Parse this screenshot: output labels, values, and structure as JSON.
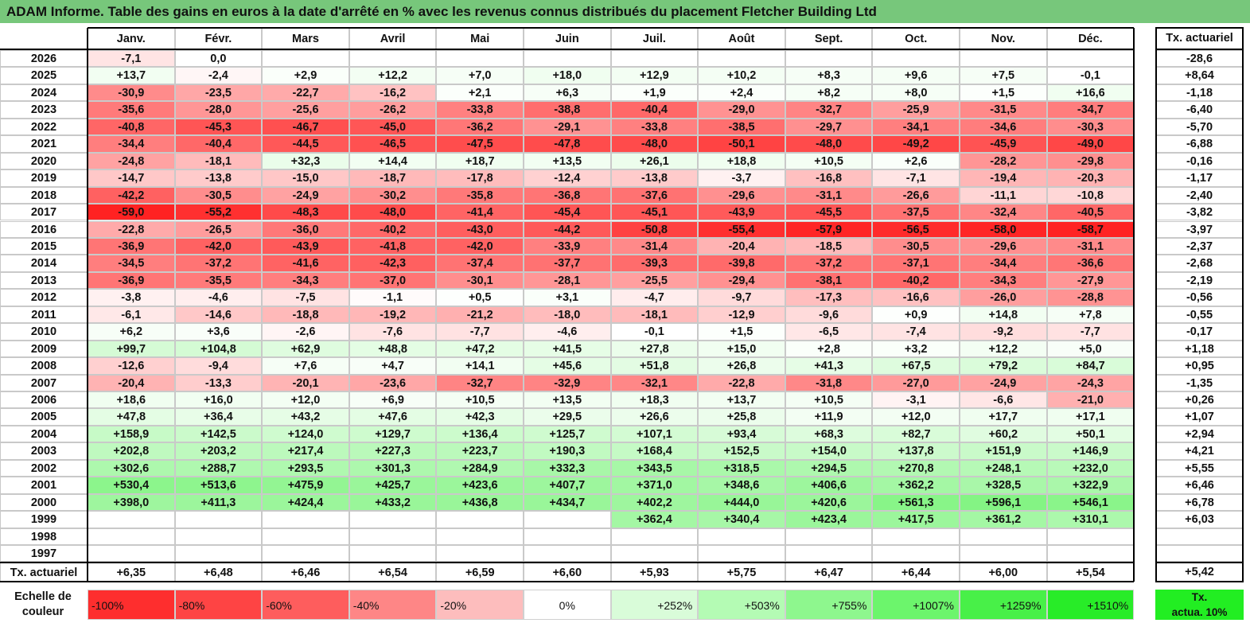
{
  "title": "ADAM Informe. Table des gains en euros à la date d'arrêté en % avec les revenus connus distribués du placement Fletcher Building Ltd",
  "chart_data": {
    "type": "table",
    "title": "ADAM Informe. Table des gains en euros à la date d'arrêté en % avec les revenus connus distribués du placement Fletcher Building Ltd",
    "columns": [
      "Janv.",
      "Févr.",
      "Mars",
      "Avril",
      "Mai",
      "Juin",
      "Juil.",
      "Août",
      "Sept.",
      "Oct.",
      "Nov.",
      "Déc."
    ],
    "rate_header": "Tx. actuariel",
    "rows": [
      {
        "year": "2026",
        "values": [
          "-7,1",
          "0,0",
          "",
          "",
          "",
          "",
          "",
          "",
          "",
          "",
          "",
          ""
        ],
        "rate": "-28,6"
      },
      {
        "year": "2025",
        "values": [
          "+13,7",
          "-2,4",
          "+2,9",
          "+12,2",
          "+7,0",
          "+18,0",
          "+12,9",
          "+10,2",
          "+8,3",
          "+9,6",
          "+7,5",
          "-0,1"
        ],
        "rate": "+8,64"
      },
      {
        "year": "2024",
        "values": [
          "-30,9",
          "-23,5",
          "-22,7",
          "-16,2",
          "+2,1",
          "+6,3",
          "+1,9",
          "+2,4",
          "+8,2",
          "+8,0",
          "+1,5",
          "+16,6"
        ],
        "rate": "-1,18"
      },
      {
        "year": "2023",
        "values": [
          "-35,6",
          "-28,0",
          "-25,6",
          "-26,2",
          "-33,8",
          "-38,8",
          "-40,4",
          "-29,0",
          "-32,7",
          "-25,9",
          "-31,5",
          "-34,7"
        ],
        "rate": "-6,40"
      },
      {
        "year": "2022",
        "values": [
          "-40,8",
          "-45,3",
          "-46,7",
          "-45,0",
          "-36,2",
          "-29,1",
          "-33,8",
          "-38,5",
          "-29,7",
          "-34,1",
          "-34,6",
          "-30,3"
        ],
        "rate": "-5,70"
      },
      {
        "year": "2021",
        "values": [
          "-34,4",
          "-40,4",
          "-44,5",
          "-46,5",
          "-47,5",
          "-47,8",
          "-48,0",
          "-50,1",
          "-48,0",
          "-49,2",
          "-45,9",
          "-49,0"
        ],
        "rate": "-6,88"
      },
      {
        "year": "2020",
        "values": [
          "-24,8",
          "-18,1",
          "+32,3",
          "+14,4",
          "+18,7",
          "+13,5",
          "+26,1",
          "+18,8",
          "+10,5",
          "+2,6",
          "-28,2",
          "-29,8"
        ],
        "rate": "-0,16"
      },
      {
        "year": "2019",
        "values": [
          "-14,7",
          "-13,8",
          "-15,0",
          "-18,7",
          "-17,8",
          "-12,4",
          "-13,8",
          "-3,7",
          "-16,8",
          "-7,1",
          "-19,4",
          "-20,3"
        ],
        "rate": "-1,17"
      },
      {
        "year": "2018",
        "values": [
          "-42,2",
          "-30,5",
          "-24,9",
          "-30,2",
          "-35,8",
          "-36,8",
          "-37,6",
          "-29,6",
          "-31,1",
          "-26,6",
          "-11,1",
          "-10,8"
        ],
        "rate": "-2,40"
      },
      {
        "year": "2017",
        "values": [
          "-59,0",
          "-55,2",
          "-48,3",
          "-48,0",
          "-41,4",
          "-45,4",
          "-45,1",
          "-43,9",
          "-45,5",
          "-37,5",
          "-32,4",
          "-40,5"
        ],
        "rate": "-3,82"
      },
      {
        "year": "2016",
        "values": [
          "-22,8",
          "-26,5",
          "-36,0",
          "-40,2",
          "-43,0",
          "-44,2",
          "-50,8",
          "-55,4",
          "-57,9",
          "-56,5",
          "-58,0",
          "-58,7"
        ],
        "rate": "-3,97"
      },
      {
        "year": "2015",
        "values": [
          "-36,9",
          "-42,0",
          "-43,9",
          "-41,8",
          "-42,0",
          "-33,9",
          "-31,4",
          "-20,4",
          "-18,5",
          "-30,5",
          "-29,6",
          "-31,1"
        ],
        "rate": "-2,37"
      },
      {
        "year": "2014",
        "values": [
          "-34,5",
          "-37,2",
          "-41,6",
          "-42,3",
          "-37,4",
          "-37,7",
          "-39,3",
          "-39,8",
          "-37,2",
          "-37,1",
          "-34,4",
          "-36,6"
        ],
        "rate": "-2,68"
      },
      {
        "year": "2013",
        "values": [
          "-36,9",
          "-35,5",
          "-34,3",
          "-37,0",
          "-30,1",
          "-28,1",
          "-25,5",
          "-29,4",
          "-38,1",
          "-40,2",
          "-34,3",
          "-27,9"
        ],
        "rate": "-2,19"
      },
      {
        "year": "2012",
        "values": [
          "-3,8",
          "-4,6",
          "-7,5",
          "-1,1",
          "+0,5",
          "+3,1",
          "-4,7",
          "-9,7",
          "-17,3",
          "-16,6",
          "-26,0",
          "-28,8"
        ],
        "rate": "-0,56"
      },
      {
        "year": "2011",
        "values": [
          "-6,1",
          "-14,6",
          "-18,8",
          "-19,2",
          "-21,2",
          "-18,0",
          "-18,1",
          "-12,9",
          "-9,6",
          "+0,9",
          "+14,8",
          "+7,8"
        ],
        "rate": "-0,55"
      },
      {
        "year": "2010",
        "values": [
          "+6,2",
          "+3,6",
          "-2,6",
          "-7,6",
          "-7,7",
          "-4,6",
          "-0,1",
          "+1,5",
          "-6,5",
          "-7,4",
          "-9,2",
          "-7,7"
        ],
        "rate": "-0,17"
      },
      {
        "year": "2009",
        "values": [
          "+99,7",
          "+104,8",
          "+62,9",
          "+48,8",
          "+47,2",
          "+41,5",
          "+27,8",
          "+15,0",
          "+2,8",
          "+3,2",
          "+12,2",
          "+5,0"
        ],
        "rate": "+1,18"
      },
      {
        "year": "2008",
        "values": [
          "-12,6",
          "-9,4",
          "+7,6",
          "+4,7",
          "+14,1",
          "+45,6",
          "+51,8",
          "+26,8",
          "+41,3",
          "+67,5",
          "+79,2",
          "+84,7"
        ],
        "rate": "+0,95"
      },
      {
        "year": "2007",
        "values": [
          "-20,4",
          "-13,3",
          "-20,1",
          "-23,6",
          "-32,7",
          "-32,9",
          "-32,1",
          "-22,8",
          "-31,8",
          "-27,0",
          "-24,9",
          "-24,3"
        ],
        "rate": "-1,35"
      },
      {
        "year": "2006",
        "values": [
          "+18,6",
          "+16,0",
          "+12,0",
          "+6,9",
          "+10,5",
          "+13,5",
          "+18,3",
          "+13,7",
          "+10,5",
          "-3,1",
          "-6,6",
          "-21,0"
        ],
        "rate": "+0,26"
      },
      {
        "year": "2005",
        "values": [
          "+47,8",
          "+36,4",
          "+43,2",
          "+47,6",
          "+42,3",
          "+29,5",
          "+26,6",
          "+25,8",
          "+11,9",
          "+12,0",
          "+17,7",
          "+17,1"
        ],
        "rate": "+1,07"
      },
      {
        "year": "2004",
        "values": [
          "+158,9",
          "+142,5",
          "+124,0",
          "+129,7",
          "+136,4",
          "+125,7",
          "+107,1",
          "+93,4",
          "+68,3",
          "+82,7",
          "+60,2",
          "+50,1"
        ],
        "rate": "+2,94"
      },
      {
        "year": "2003",
        "values": [
          "+202,8",
          "+203,2",
          "+217,4",
          "+227,3",
          "+223,7",
          "+190,3",
          "+168,4",
          "+152,5",
          "+154,0",
          "+137,8",
          "+151,9",
          "+146,9"
        ],
        "rate": "+4,21"
      },
      {
        "year": "2002",
        "values": [
          "+302,6",
          "+288,7",
          "+293,5",
          "+301,3",
          "+284,9",
          "+332,3",
          "+343,5",
          "+318,5",
          "+294,5",
          "+270,8",
          "+248,1",
          "+232,0"
        ],
        "rate": "+5,55"
      },
      {
        "year": "2001",
        "values": [
          "+530,4",
          "+513,6",
          "+475,9",
          "+425,7",
          "+423,6",
          "+407,7",
          "+371,0",
          "+348,6",
          "+406,6",
          "+362,2",
          "+328,5",
          "+322,9"
        ],
        "rate": "+6,46"
      },
      {
        "year": "2000",
        "values": [
          "+398,0",
          "+411,3",
          "+424,4",
          "+433,2",
          "+436,8",
          "+434,7",
          "+402,2",
          "+444,0",
          "+420,6",
          "+561,3",
          "+596,1",
          "+546,1"
        ],
        "rate": "+6,78"
      },
      {
        "year": "1999",
        "values": [
          "",
          "",
          "",
          "",
          "",
          "",
          "+362,4",
          "+340,4",
          "+423,4",
          "+417,5",
          "+361,2",
          "+310,1"
        ],
        "rate": "+6,03"
      },
      {
        "year": "1998",
        "values": [
          "",
          "",
          "",
          "",
          "",
          "",
          "",
          "",
          "",
          "",
          "",
          ""
        ],
        "rate": ""
      },
      {
        "year": "1997",
        "values": [
          "",
          "",
          "",
          "",
          "",
          "",
          "",
          "",
          "",
          "",
          "",
          ""
        ],
        "rate": ""
      }
    ],
    "footer": {
      "label": "Tx. actuariel",
      "values": [
        "+6,35",
        "+6,48",
        "+6,46",
        "+6,54",
        "+6,59",
        "+6,60",
        "+5,93",
        "+5,75",
        "+6,47",
        "+6,44",
        "+6,00",
        "+5,54"
      ],
      "rate": "+5,42"
    },
    "legend": {
      "label_line1": "Echelle de",
      "label_line2": "couleur",
      "stops": [
        {
          "label": "-100%",
          "color": "#fe2e2e"
        },
        {
          "label": "-80%",
          "color": "#fe4444"
        },
        {
          "label": "-60%",
          "color": "#fe5d5d"
        },
        {
          "label": "-40%",
          "color": "#fe8686"
        },
        {
          "label": "-20%",
          "color": "#fdbdbd"
        },
        {
          "label": "0%",
          "color": "#ffffff"
        },
        {
          "label": "+252%",
          "color": "#d9fcd9"
        },
        {
          "label": "+503%",
          "color": "#b4fbb4"
        },
        {
          "label": "+755%",
          "color": "#8ef78e"
        },
        {
          "label": "+1007%",
          "color": "#6cf56c"
        },
        {
          "label": "+1259%",
          "color": "#48f048"
        },
        {
          "label": "+1510%",
          "color": "#28ec28"
        }
      ],
      "rate_line1": "Tx.",
      "rate_line2": "actua. 10%",
      "rate_color": "#22ee22"
    }
  }
}
